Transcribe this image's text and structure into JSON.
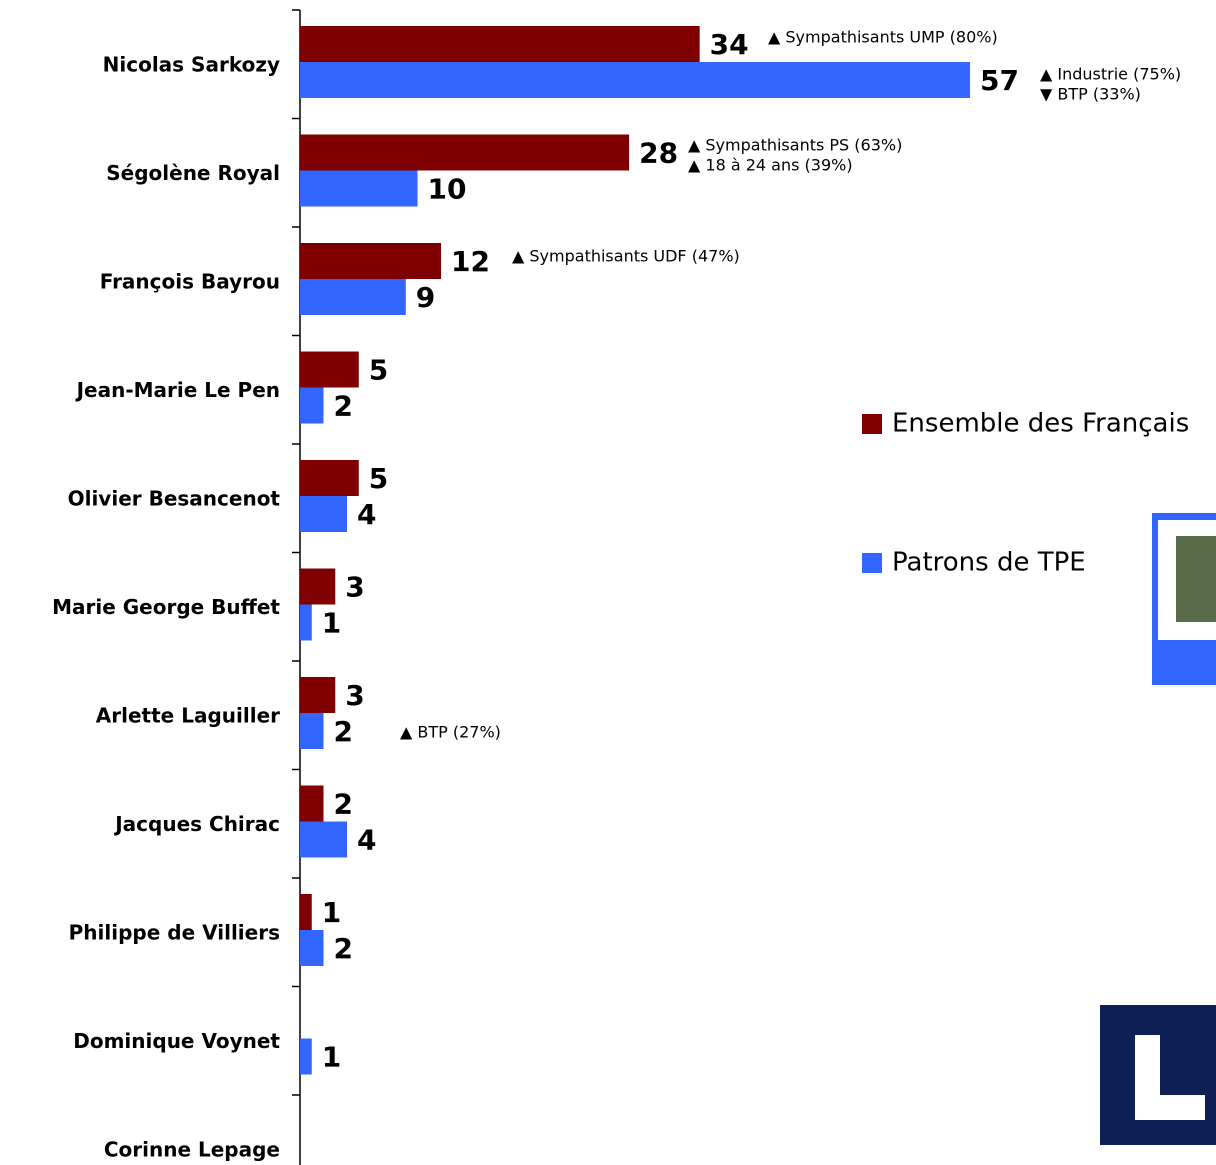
{
  "chart_data": {
    "type": "hbar",
    "categories": [
      "Nicolas Sarkozy",
      "Ségolène Royal",
      "François Bayrou",
      "Jean-Marie Le Pen",
      "Olivier Besancenot",
      "Marie George Buffet",
      "Arlette Laguiller",
      "Jacques Chirac",
      "Philippe de Villiers",
      "Dominique Voynet",
      "Corinne Lepage"
    ],
    "series": [
      {
        "name": "Ensemble des Français",
        "color": "#7f0000",
        "values": [
          34,
          28,
          12,
          5,
          5,
          3,
          3,
          2,
          1,
          null,
          null
        ]
      },
      {
        "name": "Patrons de TPE",
        "color": "#3366ff",
        "values": [
          57,
          10,
          9,
          2,
          4,
          1,
          2,
          4,
          2,
          1,
          null
        ]
      }
    ],
    "annotations": [
      "▲ Sympathisants UMP (80%)",
      "▲ Industrie (75%)",
      "▼ BTP (33%)",
      "▲ Sympathisants PS (63%)",
      "▲  18 à 24 ans (39%)",
      "▲ Sympathisants UDF (47%)",
      "▲ BTP (27%)"
    ]
  }
}
